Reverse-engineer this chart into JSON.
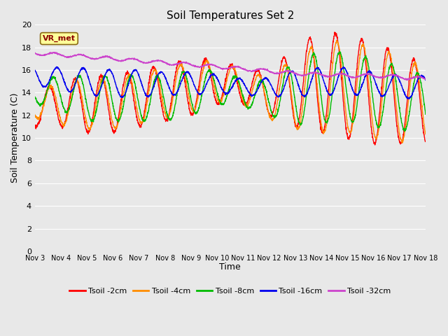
{
  "title": "Soil Temperatures Set 2",
  "xlabel": "Time",
  "ylabel": "Soil Temperature (C)",
  "ylim": [
    0,
    20
  ],
  "yticks": [
    0,
    2,
    4,
    6,
    8,
    10,
    12,
    14,
    16,
    18,
    20
  ],
  "x_tick_labels": [
    "Nov 3",
    "Nov 4",
    "Nov 5",
    "Nov 6",
    "Nov 7",
    "Nov 8",
    "Nov 9",
    "Nov 10",
    "Nov 11",
    "Nov 12",
    "Nov 13",
    "Nov 14",
    "Nov 15",
    "Nov 16",
    "Nov 17",
    "Nov 18"
  ],
  "colors": {
    "Tsoil -2cm": "#ff0000",
    "Tsoil -4cm": "#ff8c00",
    "Tsoil -8cm": "#00bb00",
    "Tsoil -16cm": "#0000ee",
    "Tsoil -32cm": "#cc44cc"
  },
  "annotation_text": "VR_met",
  "plot_bg_color": "#e8e8e8",
  "fig_bg_color": "#e8e8e8",
  "grid_color": "#ffffff",
  "linewidth": 1.0
}
